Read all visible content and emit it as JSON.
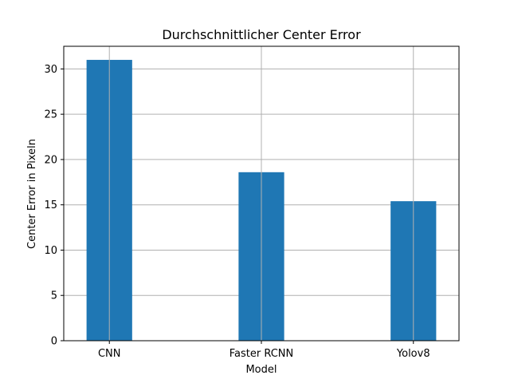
{
  "chart_data": {
    "type": "bar",
    "title": "Durchschnittlicher Center Error",
    "xlabel": "Model",
    "ylabel": "Center Error in Pixeln",
    "categories": [
      "CNN",
      "Faster RCNN",
      "Yolov8"
    ],
    "values": [
      31.0,
      18.6,
      15.4
    ],
    "ylim": [
      0,
      32.5
    ],
    "yticks": [
      0,
      5,
      10,
      15,
      20,
      25,
      30
    ],
    "grid": true,
    "bar_color": "#1f77b4",
    "grid_color": "#b0b0b0"
  }
}
